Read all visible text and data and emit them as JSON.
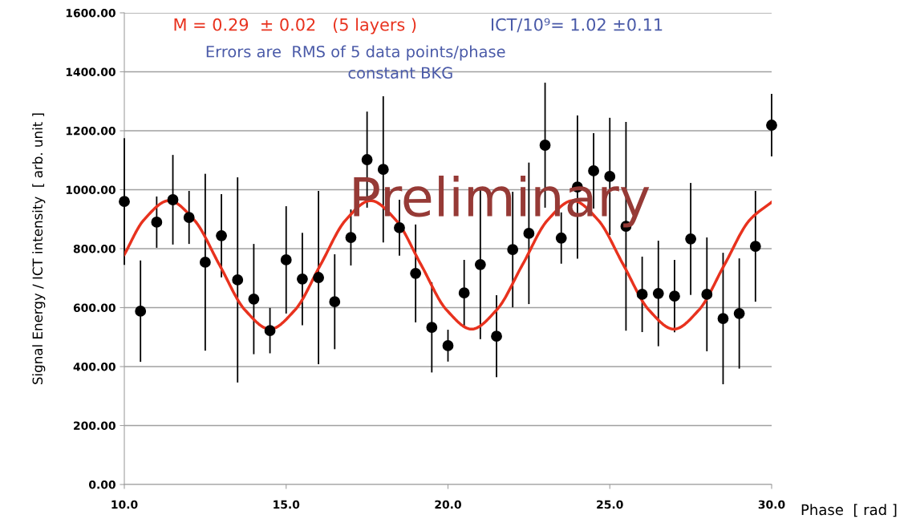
{
  "chart_data": {
    "type": "scatter",
    "xlabel": "Phase  [ rad ]",
    "ylabel": "Signal Energy / ICT intensity  [ arb. unit ]",
    "annotations": [
      "M = 0.29  ± 0.02   (5 layers )",
      "ICT/10⁹= 1.02 ±0.11",
      "Errors are  RMS of 5 data points/phase",
      "constant BKG",
      "Preliminary"
    ],
    "xlim": [
      10,
      30
    ],
    "xticks": [
      {
        "value": 10,
        "label": "10.0"
      },
      {
        "value": 15,
        "label": "15.0"
      },
      {
        "value": 20,
        "label": "20.0"
      },
      {
        "value": 25,
        "label": "25.0"
      },
      {
        "value": 30,
        "label": "30.0"
      }
    ],
    "ylim": [
      0,
      1600
    ],
    "yticks": [
      {
        "value": 0,
        "label": "0.00"
      },
      {
        "value": 200,
        "label": "200.00"
      },
      {
        "value": 400,
        "label": "400.00"
      },
      {
        "value": 600,
        "label": "600.00"
      },
      {
        "value": 800,
        "label": "800.00"
      },
      {
        "value": 1000,
        "label": "1000.00"
      },
      {
        "value": 1200,
        "label": "1200.00"
      },
      {
        "value": 1400,
        "label": "1400.00"
      },
      {
        "value": 1600,
        "label": "1600.00"
      }
    ],
    "grid": "y",
    "legend": false,
    "series": [
      {
        "color": "#000000",
        "marker": "circle",
        "x": [
          10,
          10.5,
          11,
          11.5,
          12,
          12.5,
          13,
          13.5,
          14,
          14.5,
          15,
          15.5,
          16,
          16.5,
          17,
          17.5,
          18,
          18.5,
          19,
          19.5,
          20,
          20.5,
          21,
          21.5,
          22,
          22.5,
          23,
          23.5,
          24,
          24.5,
          25,
          25.5,
          26,
          26.5,
          27,
          27.5,
          28,
          28.5,
          29,
          29.5,
          30
        ],
        "values": [
          960,
          588,
          890,
          966,
          906,
          754,
          844,
          694,
          629,
          522,
          762,
          697,
          702,
          620,
          838,
          1102,
          1069,
          871,
          716,
          533,
          471,
          650,
          746,
          503,
          797,
          852,
          1151,
          836,
          1009,
          1064,
          1045,
          876,
          645,
          648,
          639,
          833,
          645,
          563,
          580,
          808,
          1219
        ],
        "errors": [
          215,
          172,
          87,
          152,
          90,
          300,
          141,
          348,
          187,
          77,
          182,
          157,
          294,
          161,
          95,
          163,
          248,
          95,
          166,
          153,
          54,
          112,
          253,
          139,
          196,
          240,
          212,
          87,
          243,
          128,
          199,
          354,
          128,
          179,
          123,
          190,
          193,
          223,
          187,
          188,
          106
        ]
      },
      {
        "type": "line",
        "color": "#e8321e",
        "marker": "none",
        "line_style": "solid",
        "x": [
          10.0,
          10.6,
          11.38,
          12.16,
          12.94,
          13.72,
          14.5,
          15.28,
          16.06,
          16.84,
          17.61,
          18.39,
          19.17,
          19.95,
          20.73,
          21.51,
          22.3,
          23.08,
          23.86,
          24.64,
          25.42,
          26.2,
          26.98,
          27.76,
          28.54,
          29.32,
          30.0
        ],
        "values": [
          780,
          897,
          963,
          897,
          745,
          593,
          527,
          593,
          745,
          897,
          963,
          897,
          745,
          593,
          527,
          593,
          745,
          897,
          963,
          897,
          745,
          593,
          527,
          593,
          745,
          897,
          958
        ]
      }
    ]
  }
}
